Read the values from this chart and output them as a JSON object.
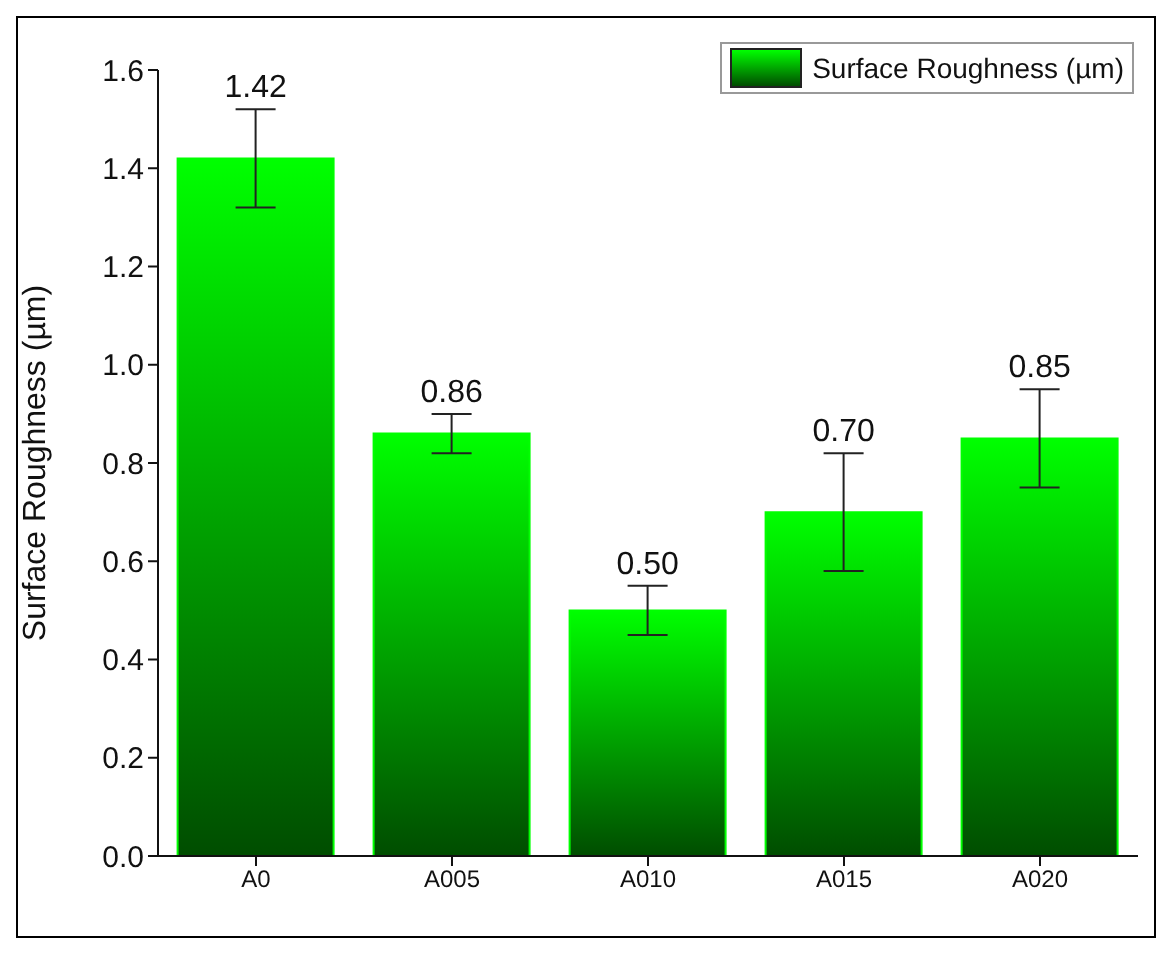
{
  "chart_data": {
    "type": "bar",
    "ylabel": "Surface Roughness (µm)",
    "categories": [
      "A0",
      "A005",
      "A010",
      "A015",
      "A020"
    ],
    "series": [
      {
        "name": "Surface Roughness (µm)",
        "color": "#00ff00",
        "values": [
          1.42,
          0.86,
          0.5,
          0.7,
          0.85
        ],
        "value_labels": [
          "1.42",
          "0.86",
          "0.50",
          "0.70",
          "0.85"
        ],
        "errors": [
          0.1,
          0.04,
          0.05,
          0.12,
          0.1
        ]
      }
    ],
    "ylim": [
      0,
      1.6
    ],
    "yticks": [
      {
        "value": 0,
        "label": "0.0"
      },
      0.2,
      0.4,
      0.6,
      0.8,
      {
        "value": 1,
        "label": "1.0"
      },
      1.2,
      1.4,
      1.6
    ],
    "legend": "top right",
    "grid": false
  }
}
